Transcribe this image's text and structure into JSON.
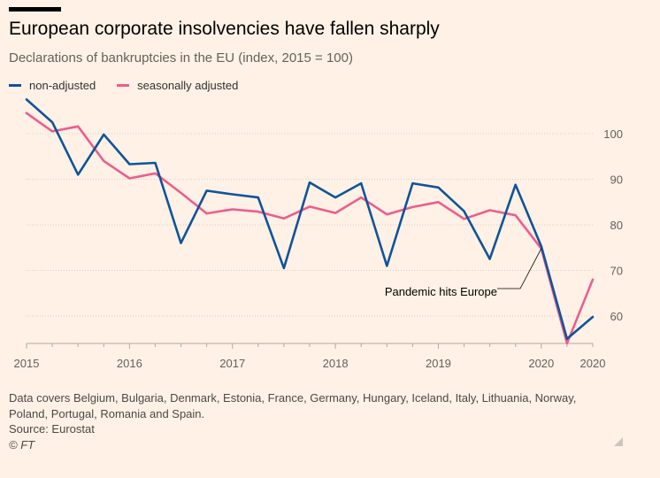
{
  "header": {
    "title": "European corporate insolvencies have fallen sharply",
    "subtitle": "Declarations of bankruptcies in the EU (index, 2015 = 100)"
  },
  "legend": {
    "non_adjusted": "non-adjusted",
    "seasonally_adjusted": "seasonally adjusted"
  },
  "footer": {
    "note_line1": "Data covers Belgium, Bulgaria, Denmark, Estonia, France, Germany, Hungary, Iceland, Italy, Lithuania, Norway,",
    "note_line2": "Poland, Portugal, Romania and Spain.",
    "source": "Source: Eurostat",
    "credit": "© FT"
  },
  "colors": {
    "background": "#fff1e5",
    "non_adjusted": "#0f5499",
    "seasonally_adjusted": "#eb5e8d",
    "gridline": "#d9d0c5",
    "axis_text": "#66605c"
  },
  "chart_data": {
    "type": "line",
    "title": "European corporate insolvencies have fallen sharply",
    "subtitle": "Declarations of bankruptcies in the EU (index, 2015 = 100)",
    "xlabel": "",
    "ylabel": "",
    "x": [
      2015.0,
      2015.25,
      2015.5,
      2015.75,
      2016.0,
      2016.25,
      2016.5,
      2016.75,
      2017.0,
      2017.25,
      2017.5,
      2017.75,
      2018.0,
      2018.25,
      2018.5,
      2018.75,
      2019.0,
      2019.25,
      2019.5,
      2019.75,
      2020.0,
      2020.25,
      2020.5
    ],
    "x_tick_values": [
      2015,
      2016,
      2017,
      2018,
      2019,
      2020,
      2020.5
    ],
    "x_tick_labels": [
      "2015",
      "2016",
      "2017",
      "2018",
      "2019",
      "2020",
      "2020"
    ],
    "xlim": [
      2015.0,
      2020.5
    ],
    "ylim": [
      54,
      108
    ],
    "y_ticks": [
      60,
      70,
      80,
      90,
      100
    ],
    "grid": true,
    "legend_position": "top-left",
    "series": [
      {
        "name": "non-adjusted",
        "values": [
          107.5,
          102.5,
          91.0,
          99.8,
          93.3,
          93.6,
          76.0,
          87.5,
          86.7,
          86.0,
          70.5,
          89.3,
          86.0,
          89.1,
          71.0,
          89.1,
          88.2,
          83.0,
          72.5,
          88.8,
          75.3,
          55.0,
          59.8
        ]
      },
      {
        "name": "seasonally adjusted",
        "values": [
          104.5,
          100.5,
          101.6,
          94.0,
          90.2,
          91.3,
          87.0,
          82.5,
          83.4,
          82.9,
          81.4,
          84.0,
          82.6,
          86.0,
          82.3,
          83.9,
          85.0,
          81.3,
          83.2,
          82.1,
          74.8,
          54.0,
          68.0
        ]
      }
    ],
    "annotations": [
      {
        "text": "Pandemic hits Europe",
        "x": 2020.0,
        "y": 74.8
      }
    ]
  }
}
